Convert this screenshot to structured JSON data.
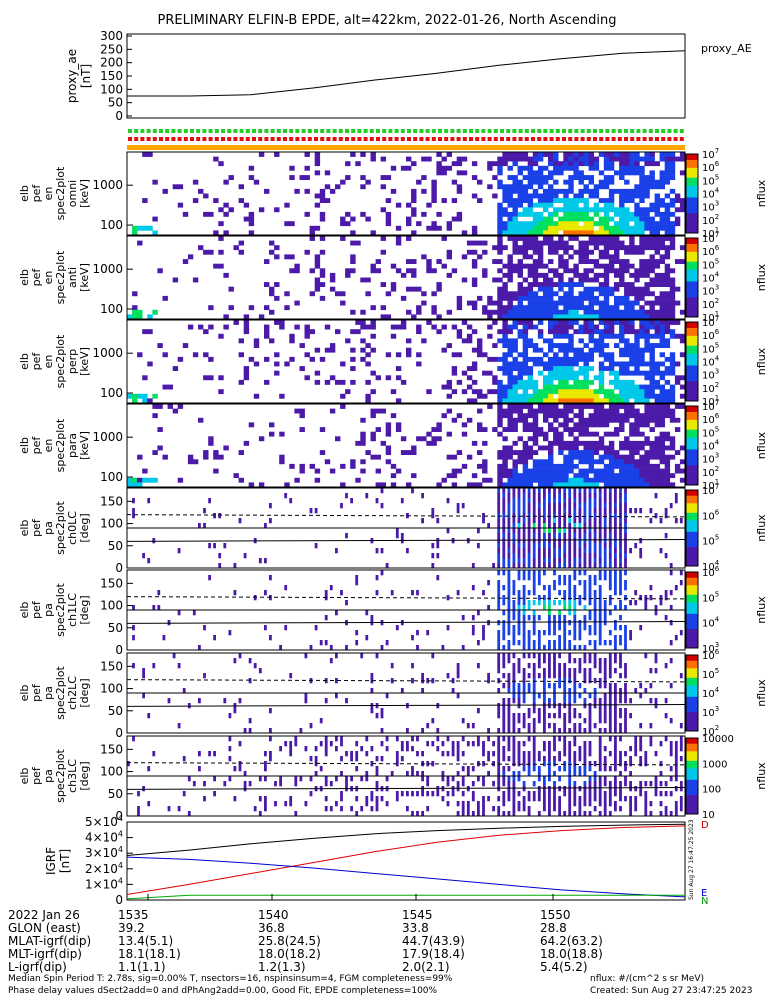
{
  "title": "PRELIMINARY ELFIN-B EPDE, alt=422km, 2022-01-26, North Ascending",
  "top_panel": {
    "ylabel": [
      "proxy_ae",
      "[nT]"
    ],
    "yticks": [
      "300",
      "250",
      "200",
      "150",
      "100",
      "50",
      "0"
    ],
    "legend": "proxy_AE",
    "color": "#000000"
  },
  "spectrogram_panels": [
    {
      "ylabel": [
        "elb",
        "pef",
        "en",
        "spec2plot",
        "omni",
        "[keV]"
      ],
      "yticks": [
        "1000",
        "100"
      ],
      "cbar_label": "nflux",
      "cbar_ticks": [
        "10^7",
        "10^6",
        "10^5",
        "10^4",
        "10^3",
        "10^2",
        "10^1"
      ]
    },
    {
      "ylabel": [
        "elb",
        "pef",
        "en",
        "spec2plot",
        "anti",
        "[keV]"
      ],
      "yticks": [
        "1000",
        "100"
      ],
      "cbar_label": "nflux",
      "cbar_ticks": [
        "10^7",
        "10^6",
        "10^5",
        "10^4",
        "10^3",
        "10^2",
        "10^1"
      ]
    },
    {
      "ylabel": [
        "elb",
        "pef",
        "en",
        "spec2plot",
        "perp",
        "[keV]"
      ],
      "yticks": [
        "1000",
        "100"
      ],
      "cbar_label": "nflux",
      "cbar_ticks": [
        "10^7",
        "10^6",
        "10^5",
        "10^4",
        "10^3",
        "10^2",
        "10^1"
      ]
    },
    {
      "ylabel": [
        "elb",
        "pef",
        "en",
        "spec2plot",
        "para",
        "[keV]"
      ],
      "yticks": [
        "1000",
        "100"
      ],
      "cbar_label": "nflux",
      "cbar_ticks": [
        "10^7",
        "10^6",
        "10^5",
        "10^4",
        "10^3",
        "10^2",
        "10^1"
      ]
    }
  ],
  "pitch_panels": [
    {
      "ylabel": [
        "elb",
        "pef",
        "pa",
        "spec2plot",
        "ch0LC",
        "[deg]"
      ],
      "yticks": [
        "150",
        "100",
        "50",
        "0"
      ],
      "cbar_label": "nflux",
      "cbar_ticks": [
        "10^7",
        "10^6",
        "10^5",
        "10^4"
      ]
    },
    {
      "ylabel": [
        "elb",
        "pef",
        "pa",
        "spec2plot",
        "ch1LC",
        "[deg]"
      ],
      "yticks": [
        "150",
        "100",
        "50",
        "0"
      ],
      "cbar_label": "nflux",
      "cbar_ticks": [
        "10^6",
        "10^5",
        "10^4",
        "10^3"
      ]
    },
    {
      "ylabel": [
        "elb",
        "pef",
        "pa",
        "spec2plot",
        "ch2LC",
        "[deg]"
      ],
      "yticks": [
        "150",
        "100",
        "50",
        "0"
      ],
      "cbar_label": "nflux",
      "cbar_ticks": [
        "10^6",
        "10^5",
        "10^4",
        "10^3",
        "10^2"
      ]
    },
    {
      "ylabel": [
        "elb",
        "pef",
        "pa",
        "spec2plot",
        "ch3LC",
        "[deg]"
      ],
      "yticks": [
        "150",
        "100",
        "50",
        "0"
      ],
      "cbar_label": "nflux",
      "cbar_ticks": [
        "10000",
        "1000",
        "100",
        "10"
      ]
    }
  ],
  "igrf_panel": {
    "ylabel": [
      "IGRF",
      "[nT]"
    ],
    "yticks": [
      "5×10^4",
      "4×10^4",
      "3×10^4",
      "2×10^4",
      "1×10^4",
      "0"
    ],
    "right_labels": [
      "D",
      "E",
      "N"
    ],
    "stamp": "Sun Aug 27 16:47:25 2023"
  },
  "chart_data": {
    "type": "line",
    "title": "PRELIMINARY ELFIN-B EPDE, alt=422km, 2022-01-26, North Ascending",
    "x": [
      "1535",
      "1540",
      "1545",
      "1550"
    ],
    "series": [
      {
        "name": "proxy_AE",
        "y_nT": [
          75,
          75,
          80,
          105,
          135,
          160,
          190,
          215,
          235,
          245
        ]
      },
      {
        "name": "D",
        "y_nT": [
          3500,
          10000,
          17000,
          24000,
          31000,
          37000,
          41500,
          44500,
          46500,
          47500
        ]
      },
      {
        "name": "E",
        "y_nT": [
          27500,
          26000,
          23500,
          20500,
          17000,
          13500,
          10000,
          6500,
          4000,
          2000
        ]
      },
      {
        "name": "N",
        "y_nT": [
          700,
          3000,
          3000,
          3000,
          3000,
          3000,
          3000,
          3000,
          3000,
          3000
        ]
      },
      {
        "name": "total",
        "y_nT": [
          28500,
          32000,
          36000,
          39500,
          42500,
          44500,
          46000,
          47200,
          48000,
          48600
        ]
      }
    ],
    "ylim_ae": [
      0,
      300
    ],
    "ylim_igrf": [
      0,
      50000
    ]
  },
  "footer": {
    "rows": [
      [
        "2022 Jan 26",
        "1535",
        "1540",
        "1545",
        "1550"
      ],
      [
        "GLON (east)",
        "39.2",
        "36.8",
        "33.8",
        "28.8"
      ],
      [
        "MLAT-igrf(dip)",
        "13.4(5.1)",
        "25.8(24.5)",
        "44.7(43.9)",
        "64.2(63.2)"
      ],
      [
        "MLT-igrf(dip)",
        "18.1(18.1)",
        "18.0(18.2)",
        "17.9(18.4)",
        "18.0(18.8)"
      ],
      [
        "L-igrf(dip)",
        "1.1(1.1)",
        "1.2(1.3)",
        "2.0(2.1)",
        "5.4(5.2)"
      ]
    ],
    "note1": "Median Spin Period T: 2.78s, sig=0.00% T, nsectors=16, nspinsinsum=4, FGM completeness=99%",
    "note2": "Phase delay values dSect2add=0 and dPhAng2add=0.00, Good Fit, EPDE completeness=100%",
    "units": "nflux: #/(cm^2 s sr MeV)",
    "created": "Created: Sun Aug 27 23:47:25 2023"
  }
}
